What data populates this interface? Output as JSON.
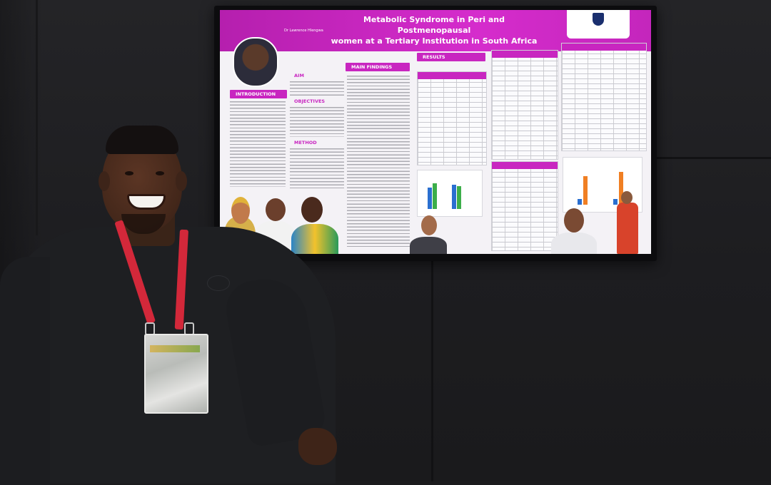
{
  "poster": {
    "title_line1": "Metabolic Syndrome in Peri and Postmenopausal",
    "title_line2": "women at a Tertiary Institution in South Africa",
    "author": "Dr Lawrence Hlengwa",
    "sections": {
      "aim": "AIM",
      "introduction": "INTRODUCTION",
      "objectives": "OBJECTIVES",
      "method": "METHOD",
      "main_findings": "MAIN FINDINGS",
      "results": "RESULTS"
    }
  },
  "colors": {
    "poster_accent": "#c826c0",
    "lanyard": "#d3283a"
  }
}
